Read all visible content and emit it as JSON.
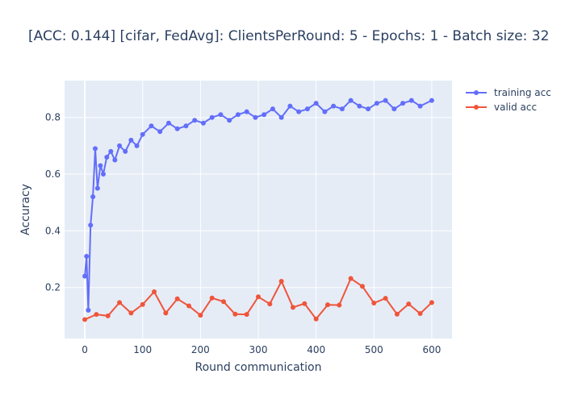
{
  "chart_data": {
    "type": "line",
    "title": "[ACC: 0.144] [cifar, FedAvg]: ClientsPerRound: 5 - Epochs: 1 - Batch size: 32",
    "xlabel": "Round communication",
    "ylabel": "Accuracy",
    "xlim": [
      -35,
      635
    ],
    "ylim": [
      0.02,
      0.93
    ],
    "xticks": [
      0,
      100,
      200,
      300,
      400,
      500,
      600
    ],
    "yticks": [
      0.2,
      0.4,
      0.6,
      0.8
    ],
    "grid": true,
    "legend_position": "top-right",
    "series": [
      {
        "name": "training acc",
        "color": "#636efa",
        "x": [
          0,
          3,
          6,
          10,
          14,
          18,
          22,
          27,
          32,
          38,
          45,
          52,
          60,
          70,
          80,
          90,
          100,
          115,
          130,
          145,
          160,
          175,
          190,
          205,
          220,
          235,
          250,
          265,
          280,
          295,
          310,
          325,
          340,
          355,
          370,
          385,
          400,
          415,
          430,
          445,
          460,
          475,
          490,
          505,
          520,
          535,
          550,
          565,
          580,
          600
        ],
        "y": [
          0.24,
          0.31,
          0.12,
          0.42,
          0.52,
          0.69,
          0.55,
          0.63,
          0.6,
          0.66,
          0.68,
          0.65,
          0.7,
          0.68,
          0.72,
          0.7,
          0.74,
          0.77,
          0.75,
          0.78,
          0.76,
          0.77,
          0.79,
          0.78,
          0.8,
          0.81,
          0.79,
          0.81,
          0.82,
          0.8,
          0.81,
          0.83,
          0.8,
          0.84,
          0.82,
          0.83,
          0.85,
          0.82,
          0.84,
          0.83,
          0.86,
          0.84,
          0.83,
          0.85,
          0.86,
          0.83,
          0.85,
          0.86,
          0.84,
          0.86
        ]
      },
      {
        "name": "valid acc",
        "color": "#ef553b",
        "x": [
          0,
          20,
          40,
          60,
          80,
          100,
          120,
          140,
          160,
          180,
          200,
          220,
          240,
          260,
          280,
          300,
          320,
          340,
          360,
          380,
          400,
          420,
          440,
          460,
          480,
          500,
          520,
          540,
          560,
          580,
          600
        ],
        "y": [
          0.087,
          0.105,
          0.1,
          0.147,
          0.11,
          0.14,
          0.185,
          0.11,
          0.16,
          0.135,
          0.102,
          0.163,
          0.15,
          0.106,
          0.105,
          0.167,
          0.142,
          0.222,
          0.13,
          0.143,
          0.089,
          0.139,
          0.138,
          0.232,
          0.204,
          0.145,
          0.162,
          0.106,
          0.142,
          0.108,
          0.147
        ]
      }
    ]
  }
}
